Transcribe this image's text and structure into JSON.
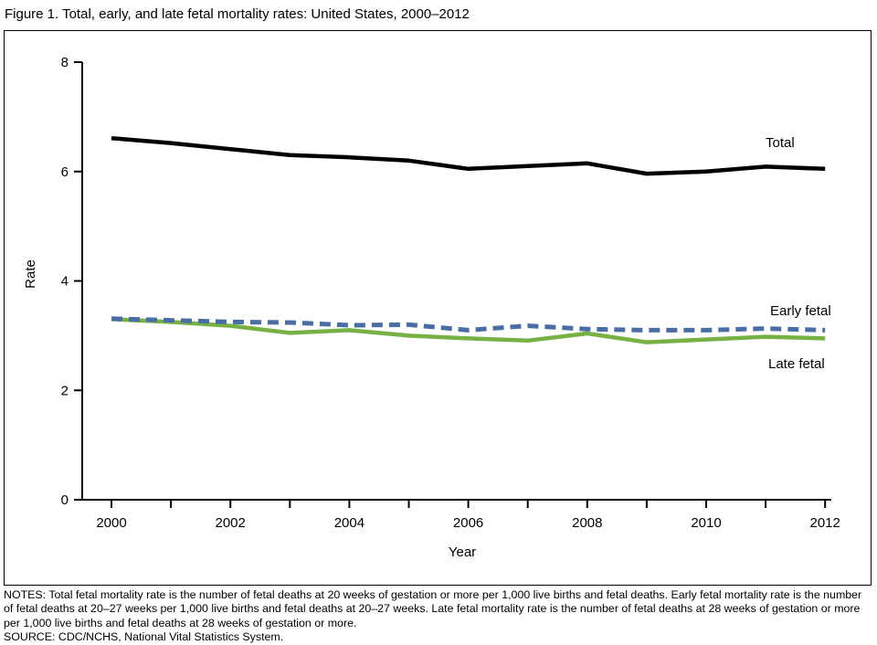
{
  "figure": {
    "title": "Figure 1. Total, early, and late fetal mortality rates: United States, 2000–2012",
    "notes": "NOTES: Total fetal mortality rate is the number of fetal deaths at 20 weeks of gestation or more per 1,000 live births and fetal deaths. Early fetal mortality rate is the number of fetal deaths at 20–27 weeks per 1,000 live births and fetal deaths at 20–27 weeks. Late fetal mortality rate is the number of fetal deaths at 28 weeks of gestation or more per 1,000 live births and fetal deaths at 28 weeks of gestation or more.",
    "source": "SOURCE: CDC/NCHS, National Vital Statistics System."
  },
  "chart_data": {
    "type": "line",
    "title": "Total, early, and late fetal mortality rates: United States, 2000–2012",
    "x": [
      2000,
      2001,
      2002,
      2003,
      2004,
      2005,
      2006,
      2007,
      2008,
      2009,
      2010,
      2011,
      2012
    ],
    "series": [
      {
        "name": "Total",
        "values": [
          6.61,
          6.52,
          6.41,
          6.3,
          6.26,
          6.2,
          6.05,
          6.1,
          6.15,
          5.96,
          6.0,
          6.09,
          6.05
        ],
        "color": "#000000",
        "dash": "",
        "width": 4.5
      },
      {
        "name": "Early fetal",
        "values": [
          3.31,
          3.28,
          3.25,
          3.24,
          3.19,
          3.2,
          3.1,
          3.18,
          3.12,
          3.1,
          3.1,
          3.13,
          3.1
        ],
        "color": "#4a6da4",
        "dash": "12 7",
        "width": 5
      },
      {
        "name": "Late fetal",
        "values": [
          3.3,
          3.25,
          3.18,
          3.05,
          3.1,
          3.0,
          2.95,
          2.91,
          3.04,
          2.88,
          2.93,
          2.98,
          2.95
        ],
        "color": "#77b143",
        "dash": "",
        "width": 4.5
      }
    ],
    "xlabel": "Year",
    "ylabel": "Rate",
    "ylim": [
      0,
      8
    ],
    "yticks": [
      0,
      2,
      4,
      6,
      8
    ],
    "xticks_labeled": [
      2000,
      2002,
      2004,
      2006,
      2008,
      2010,
      2012
    ],
    "grid": false,
    "legend": "inline-labels"
  }
}
